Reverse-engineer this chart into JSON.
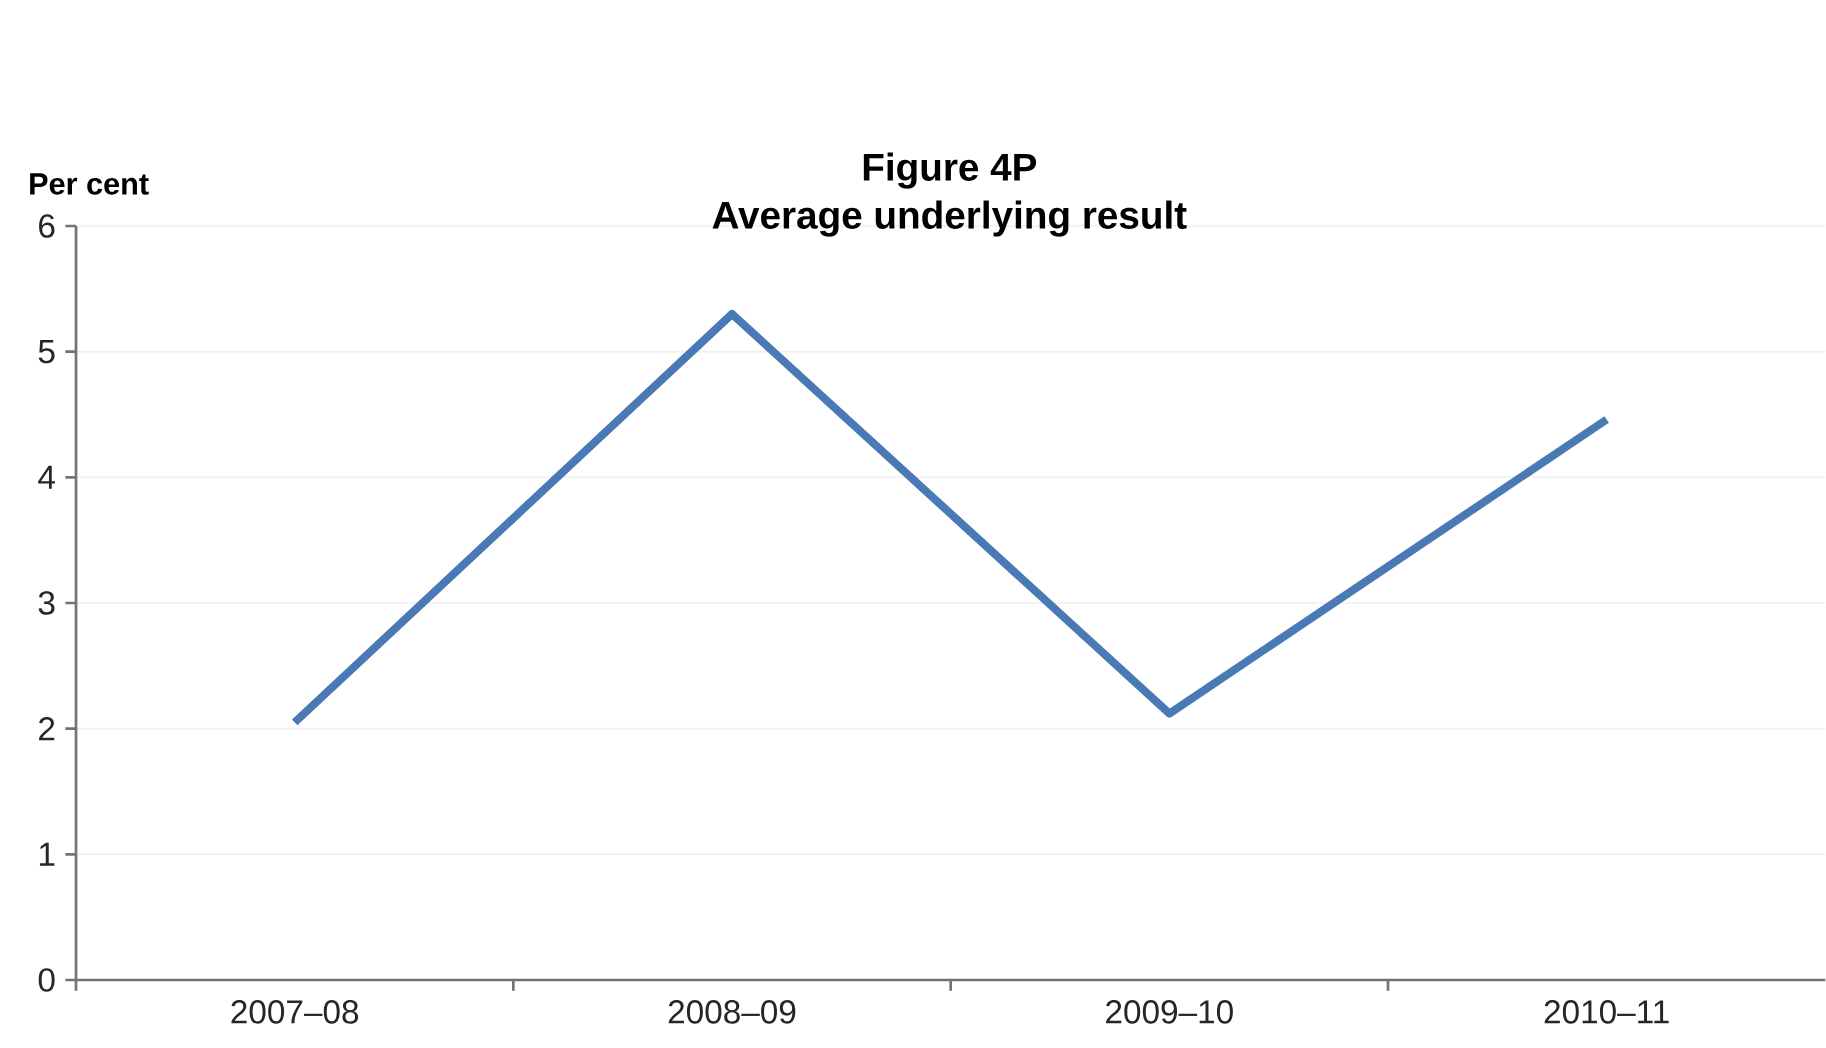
{
  "chart_data": {
    "type": "line",
    "title": "Figure 4P",
    "subtitle": "Average underlying result",
    "ylabel": "Per cent",
    "categories": [
      "2007–08",
      "2008–09",
      "2009–10",
      "2010–11"
    ],
    "series": [
      {
        "color": "#4a7ab5",
        "values": [
          2.05,
          5.3,
          2.12,
          4.46
        ]
      }
    ],
    "ylim": [
      0,
      6
    ],
    "yticks": [
      0,
      1,
      2,
      3,
      4,
      5,
      6
    ],
    "grid": "y",
    "marker": "none",
    "line_style": "solid"
  }
}
